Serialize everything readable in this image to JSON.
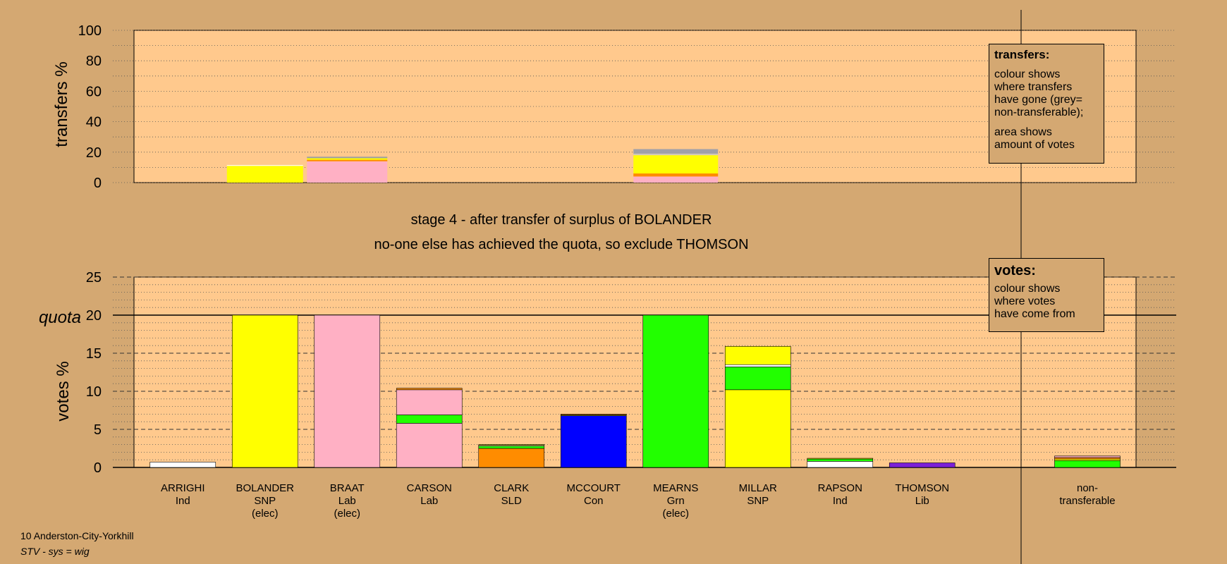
{
  "chart_data": [
    {
      "type": "bar",
      "stacked": true,
      "ylabel": "transfers %",
      "ylim": [
        0,
        100
      ],
      "yticks": [
        0,
        20,
        40,
        60,
        80,
        100
      ],
      "grid": true,
      "categories": [
        "ARRIGHI",
        "BOLANDER",
        "BRAAT",
        "CARSON",
        "CLARK",
        "MCCOURT",
        "MEARNS",
        "MILLAR",
        "RAPSON",
        "THOMSON"
      ],
      "transfer_bars": [
        {
          "category": "BOLANDER",
          "segments": [
            {
              "color": "#ffff00",
              "value": 11
            },
            {
              "color": "#ffffff",
              "value": 0.5
            }
          ]
        },
        {
          "category": "BRAAT",
          "segments": [
            {
              "color": "#ffb0c4",
              "value": 14
            },
            {
              "color": "#ff8c00",
              "value": 1
            },
            {
              "color": "#ffff00",
              "value": 1
            },
            {
              "color": "#a0a0a0",
              "value": 1
            }
          ]
        },
        {
          "category": "MEARNS",
          "segments": [
            {
              "color": "#ffb0c4",
              "value": 4
            },
            {
              "color": "#ff8c00",
              "value": 2
            },
            {
              "color": "#ffff00",
              "value": 12
            },
            {
              "color": "#d0c8b8",
              "value": 1
            },
            {
              "color": "#a0a0a8",
              "value": 3
            }
          ]
        }
      ],
      "legend": {
        "title": "transfers:",
        "lines": [
          "colour shows",
          "where transfers",
          "have gone (grey=",
          "non-transferable);"
        ],
        "lines2": [
          "area shows",
          "amount of votes"
        ]
      }
    },
    {
      "type": "bar",
      "stacked": true,
      "ylabel": "votes %",
      "ylim": [
        0,
        25
      ],
      "yticks": [
        0,
        5,
        10,
        15,
        20,
        25
      ],
      "quota": 20,
      "quota_label": "quota",
      "grid": true,
      "candidates": [
        {
          "name": "ARRIGHI",
          "party": "Ind",
          "elec": "",
          "segments": [
            {
              "color": "#ffffff",
              "value": 0.7
            }
          ]
        },
        {
          "name": "BOLANDER",
          "party": "SNP",
          "elec": "(elec)",
          "segments": [
            {
              "color": "#ffff00",
              "value": 20
            }
          ]
        },
        {
          "name": "BRAAT",
          "party": "Lab",
          "elec": "(elec)",
          "segments": [
            {
              "color": "#ffb0c4",
              "value": 20
            }
          ]
        },
        {
          "name": "CARSON",
          "party": "Lab",
          "elec": "",
          "segments": [
            {
              "color": "#ffb0c4",
              "value": 5.8
            },
            {
              "color": "#22ff00",
              "value": 1.1
            },
            {
              "color": "#ffb0c4",
              "value": 3.3
            },
            {
              "color": "#ff8c00",
              "value": 0.2
            }
          ]
        },
        {
          "name": "CLARK",
          "party": "SLD",
          "elec": "",
          "segments": [
            {
              "color": "#ff8c00",
              "value": 2.5
            },
            {
              "color": "#22ff00",
              "value": 0.3
            },
            {
              "color": "#ffffff",
              "value": 0.1
            },
            {
              "color": "#ffff00",
              "value": 0.1
            }
          ]
        },
        {
          "name": "MCCOURT",
          "party": "Con",
          "elec": "",
          "segments": [
            {
              "color": "#0000ff",
              "value": 6.8
            },
            {
              "color": "#ffff00",
              "value": 0.1
            },
            {
              "color": "#ff8c00",
              "value": 0.1
            }
          ]
        },
        {
          "name": "MEARNS",
          "party": "Grn",
          "elec": "(elec)",
          "segments": [
            {
              "color": "#22ff00",
              "value": 20
            }
          ]
        },
        {
          "name": "MILLAR",
          "party": "SNP",
          "elec": "",
          "segments": [
            {
              "color": "#ffff00",
              "value": 10.2
            },
            {
              "color": "#22ff00",
              "value": 3
            },
            {
              "color": "#ffffff",
              "value": 0.3
            },
            {
              "color": "#ffff00",
              "value": 2.4
            }
          ]
        },
        {
          "name": "RAPSON",
          "party": "Ind",
          "elec": "",
          "segments": [
            {
              "color": "#ffffff",
              "value": 0.8
            },
            {
              "color": "#22ff00",
              "value": 0.3
            },
            {
              "color": "#ffff00",
              "value": 0.1
            }
          ]
        },
        {
          "name": "THOMSON",
          "party": "Lib",
          "elec": "",
          "segments": [
            {
              "color": "#7b20d8",
              "value": 0.6
            }
          ]
        }
      ],
      "non_transferable": {
        "label1": "non-",
        "label2": "transferable",
        "segments": [
          {
            "color": "#22ff00",
            "value": 0.9
          },
          {
            "color": "#ffff00",
            "value": 0.2
          },
          {
            "color": "#ff8c00",
            "value": 0.2
          },
          {
            "color": "#ffb0c4",
            "value": 0.2
          }
        ]
      },
      "legend": {
        "title": "votes:",
        "lines": [
          "colour shows",
          "where votes",
          "have come from"
        ]
      }
    }
  ],
  "stage_title": "stage 4 - after transfer of surplus of BOLANDER",
  "stage_subtitle": "no-one else has achieved the quota, so exclude THOMSON",
  "footer": {
    "constituency": "10 Anderston-City-Yorkhill",
    "system": "STV - sys = wig"
  }
}
